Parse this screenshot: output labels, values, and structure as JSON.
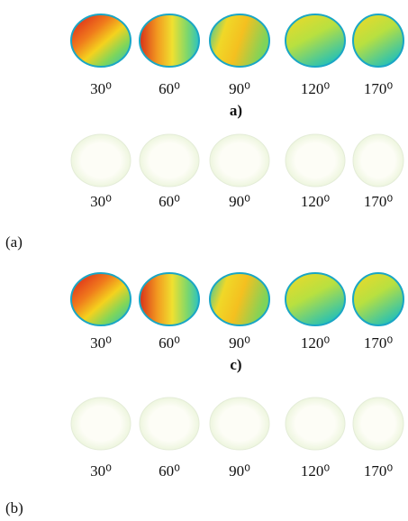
{
  "panels": [
    {
      "label": "(a)",
      "rows": [
        {
          "angles": [
            "30⁰",
            "60⁰",
            "90⁰",
            "120⁰",
            "170⁰"
          ],
          "caption": "a)"
        },
        {
          "angles": [
            "30⁰",
            "60⁰",
            "90⁰",
            "120⁰",
            "170⁰"
          ]
        }
      ]
    },
    {
      "label": "(b)",
      "rows": [
        {
          "angles": [
            "30⁰",
            "60⁰",
            "90⁰",
            "120⁰",
            "170⁰"
          ],
          "caption": "c)"
        },
        {
          "angles": [
            "30⁰",
            "60⁰",
            "90⁰",
            "120⁰",
            "170⁰"
          ]
        }
      ]
    }
  ]
}
